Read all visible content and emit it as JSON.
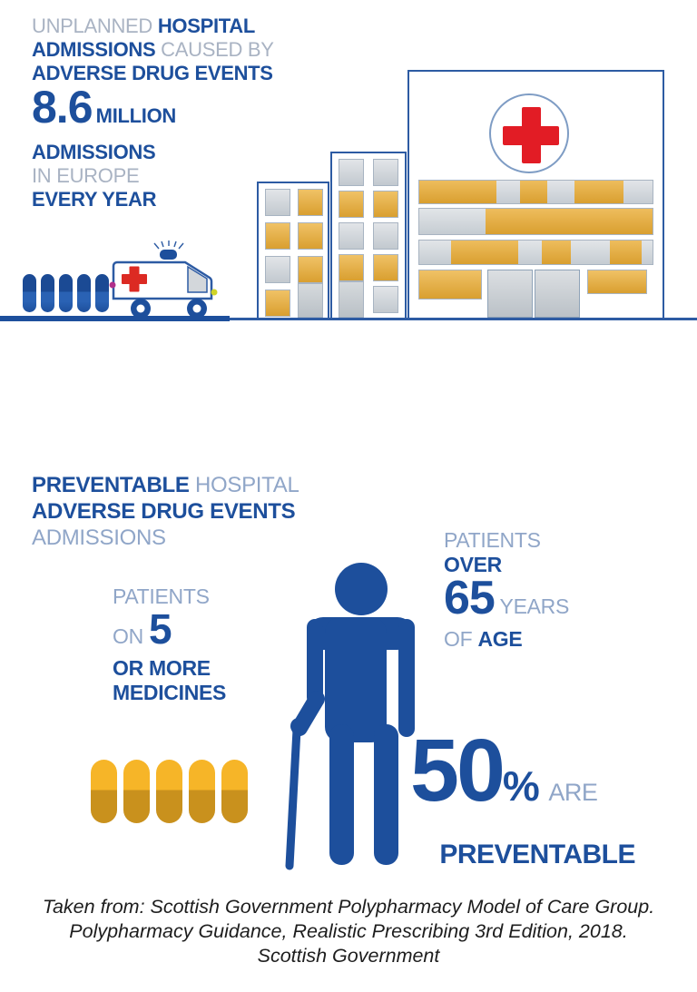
{
  "colors": {
    "brand_blue": "#1d4f9c",
    "light_text_top": "#a9b3c3",
    "light_text_bottom": "#90a6c8",
    "outline_blue": "#2d5ba3",
    "cross_red": "#e21c25",
    "window_gold": "#d99f30",
    "window_gray": "#c5ccd2",
    "pill_gold": "#f6b528",
    "footer_text": "#1d1d1d"
  },
  "icons": {
    "pills_blue": "capsule-pills-blue",
    "ambulance": "ambulance-with-red-cross",
    "hospital": "hospital-buildings",
    "red_cross": "red-cross-in-circle",
    "pills_gold": "capsule-pills-gold",
    "elderly_person": "elderly-person-with-cane"
  },
  "illustrations": {
    "blue_pill_count": 5,
    "gold_pill_count": 5
  },
  "section1": {
    "line1_light": "UNPLANNED",
    "line1_bold": "HOSPITAL",
    "line2_bold": "ADMISSIONS",
    "line2_light": "CAUSED BY",
    "line3_bold": "ADVERSE DRUG EVENTS",
    "stat_number": "8.6",
    "stat_unit": "MILLION",
    "line5_bold": "ADMISSIONS",
    "line6_light": "IN EUROPE",
    "line7_bold": "EVERY YEAR"
  },
  "section2": {
    "header": {
      "bold1": "PREVENTABLE",
      "light1": "HOSPITAL",
      "bold2": "ADVERSE DRUG EVENTS",
      "light2": "ADMISSIONS"
    },
    "on5": {
      "light1": "PATIENTS",
      "light2": "ON",
      "number": "5",
      "bold1": "OR MORE",
      "bold2": "MEDICINES"
    },
    "over65": {
      "light1": "PATIENTS",
      "bold1": "OVER",
      "number": "65",
      "light2": "YEARS",
      "light3": "OF",
      "bold2": "AGE"
    },
    "stat50": {
      "number": "50",
      "percent": "%",
      "light": "ARE",
      "bold": "PREVENTABLE"
    }
  },
  "footer": {
    "line1": "Taken from: Scottish Government Polypharmacy Model of Care Group.",
    "line2": "Polypharmacy Guidance, Realistic Prescribing 3rd Edition, 2018.",
    "line3": "Scottish Government"
  }
}
